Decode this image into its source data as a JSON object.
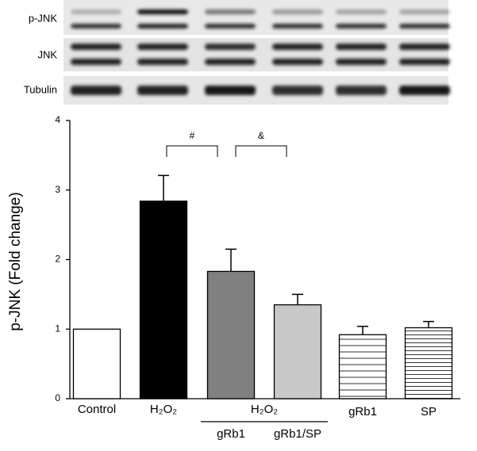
{
  "blot": {
    "labels": [
      "p-JNK",
      "JNK",
      "Tubulin"
    ]
  },
  "chart_data": {
    "type": "bar",
    "y_label": "p-JNK (Fold change)",
    "categories": [
      "Control",
      "H₂O₂",
      "gRb1",
      "gRb1/SP",
      "gRb1",
      "SP"
    ],
    "group_label": "H₂O₂",
    "values": [
      1.0,
      2.84,
      1.83,
      1.35,
      0.92,
      1.02
    ],
    "errors": [
      0,
      0.37,
      0.32,
      0.15,
      0.12,
      0.09
    ],
    "colors": [
      "#ffffff",
      "#000000",
      "#808080",
      "#c8c8c8",
      "#ffffff",
      "#ffffff"
    ],
    "hatch": [
      false,
      false,
      false,
      false,
      true,
      true
    ],
    "annotations": [
      {
        "text": "#"
      },
      {
        "text": "&"
      }
    ],
    "ylim": [
      0,
      4
    ],
    "yticks": [
      0,
      1,
      2,
      3,
      4
    ]
  }
}
